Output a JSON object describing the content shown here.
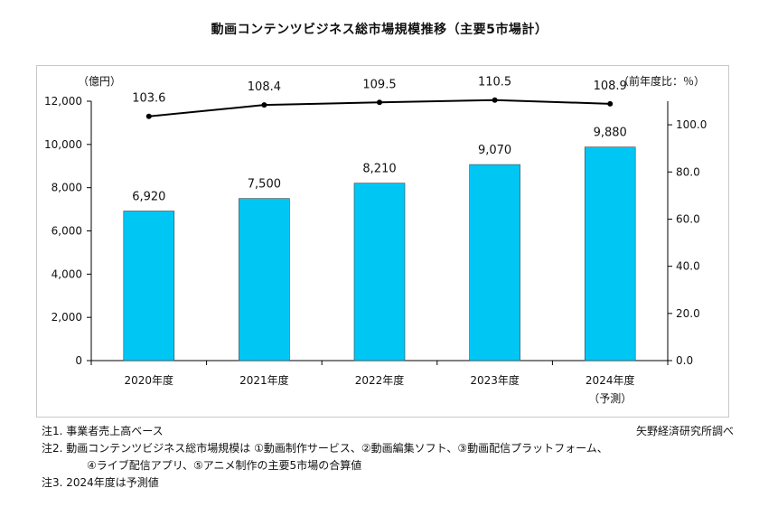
{
  "chart_data": {
    "type": "bar",
    "title": "動画コンテンツビジネス総市場規模推移（主要5市場計）",
    "categories": [
      "2020年度",
      "2021年度",
      "2022年度",
      "2023年度",
      "2024年度"
    ],
    "category_sublabels": [
      "",
      "",
      "",
      "",
      "（予測）"
    ],
    "series": [
      {
        "name": "",
        "type": "bar",
        "axis": "left",
        "color": "#00c6f4",
        "values": [
          6920,
          7500,
          8210,
          9070,
          9880
        ],
        "labels": [
          "6,920",
          "7,500",
          "8,210",
          "9,070",
          "9,880"
        ]
      },
      {
        "name": "",
        "type": "line",
        "axis": "right",
        "color": "#000000",
        "values": [
          103.6,
          108.4,
          109.5,
          110.5,
          108.9
        ],
        "labels": [
          "103.6",
          "108.4",
          "109.5",
          "110.5",
          "108.9"
        ]
      }
    ],
    "ylabel_left": "（億円）",
    "ylabel_right": "（前年度比：％）",
    "ylim_left": [
      0,
      12000
    ],
    "yticks_left": [
      "0",
      "2,000",
      "4,000",
      "6,000",
      "8,000",
      "10,000",
      "12,000"
    ],
    "ylim_right": [
      0,
      110
    ],
    "yticks_right": [
      "0.0",
      "20.0",
      "40.0",
      "60.0",
      "80.0",
      "100.0"
    ],
    "yticks_right_values": [
      0,
      20,
      40,
      60,
      80,
      100
    ],
    "grid": false,
    "legend": "none"
  },
  "notes": [
    "注1.  事業者売上高ベース",
    "注2.  動画コンテンツビジネス総市場規模は ①動画制作サービス、②動画編集ソフト、③動画配信プラットフォーム、",
    "④ライブ配信アプリ、⑤アニメ制作の主要5市場の合算値",
    "注3.  2024年度は予測値"
  ],
  "source": "矢野経済研究所調べ"
}
